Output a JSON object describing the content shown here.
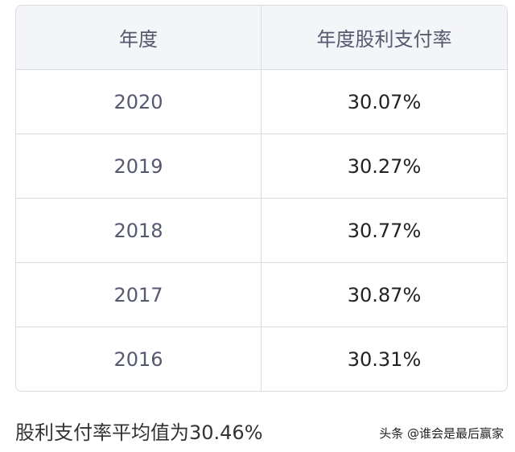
{
  "table": {
    "header": [
      "年度",
      "年度股利支付率"
    ],
    "rows": [
      [
        "2020",
        "30.07%"
      ],
      [
        "2019",
        "30.27%"
      ],
      [
        "2018",
        "30.77%"
      ],
      [
        "2017",
        "30.87%"
      ],
      [
        "2016",
        "30.31%"
      ]
    ]
  },
  "caption": "股利支付率平均值为30.46%",
  "watermark": "头条 @谁会是最后赢家"
}
